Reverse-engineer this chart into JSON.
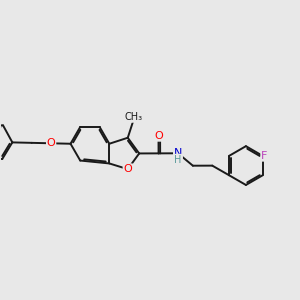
{
  "background_color": "#e8e8e8",
  "bond_color": "#1a1a1a",
  "bond_width": 1.4,
  "atom_colors": {
    "O": "#ff0000",
    "N": "#0000cd",
    "F": "#bb44bb",
    "C": "#1a1a1a",
    "H": "#5a9a9a"
  },
  "font_size": 7.5,
  "fig_width": 3.0,
  "fig_height": 3.0,
  "xlim": [
    -0.3,
    9.2
  ],
  "ylim": [
    1.8,
    6.2
  ]
}
